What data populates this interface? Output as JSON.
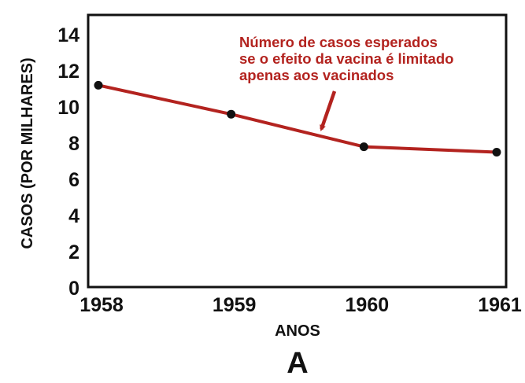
{
  "chart_data": {
    "type": "line",
    "title": "",
    "xlabel": "ANOS",
    "ylabel": "CASOS (POR MILHARES)",
    "panel_label": "A",
    "x": [
      1958,
      1959,
      1960,
      1961
    ],
    "x_tick_labels": [
      "1958",
      "1959",
      "1960",
      "1961"
    ],
    "y_ticks": [
      0,
      2,
      4,
      6,
      8,
      10,
      12,
      14
    ],
    "y_tick_labels": [
      "0",
      "2",
      "4",
      "6",
      "8",
      "10",
      "12",
      "14"
    ],
    "xlim": [
      1958,
      1961
    ],
    "ylim": [
      0,
      14.5
    ],
    "grid": false,
    "legend": false,
    "series": [
      {
        "values": [
          11.2,
          9.6,
          7.8,
          7.5
        ],
        "color": "#b3231f",
        "marker_color": "#111111"
      }
    ],
    "annotation": {
      "lines": [
        "Número de casos esperados",
        "se o efeito da vacina é limitado",
        "apenas aos vacinados"
      ],
      "color": "#b3231f",
      "arrow_target": {
        "x": 1959.68,
        "y": 8.6
      }
    }
  }
}
